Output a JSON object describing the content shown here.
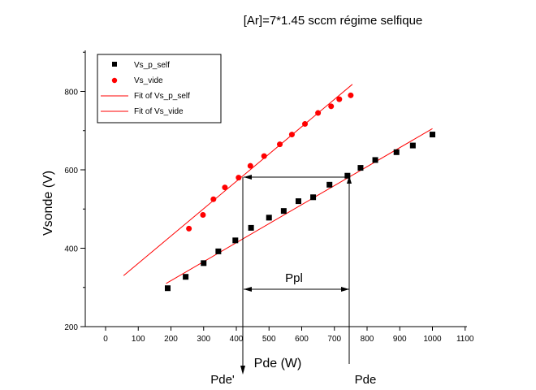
{
  "chart_data": {
    "type": "scatter",
    "title": "[Ar]=7*1.45 sccm régime selfique",
    "xlabel": "Pde (W)",
    "ylabel": "Vsonde (V)",
    "xlim": [
      -60,
      1100
    ],
    "ylim": [
      200,
      900
    ],
    "x_ticks": [
      0,
      100,
      200,
      300,
      400,
      500,
      600,
      700,
      800,
      900,
      1000,
      1100
    ],
    "y_ticks": [
      200,
      400,
      600,
      800
    ],
    "grid": false,
    "legend_position": "top-left",
    "series": [
      {
        "name": "Vs_p_self",
        "marker": "square",
        "color": "#000000",
        "x": [
          190,
          245,
          300,
          345,
          397,
          445,
          500,
          545,
          590,
          635,
          685,
          740,
          780,
          825,
          890,
          940,
          1000
        ],
        "y": [
          298,
          327,
          362,
          392,
          420,
          452,
          478,
          495,
          520,
          530,
          562,
          585,
          605,
          625,
          645,
          662,
          690
        ]
      },
      {
        "name": "Vs_vide",
        "marker": "circle",
        "color": "#ff0000",
        "x": [
          255,
          298,
          330,
          365,
          407,
          443,
          485,
          533,
          570,
          610,
          650,
          690,
          715,
          750
        ],
        "y": [
          450,
          485,
          525,
          555,
          580,
          610,
          635,
          665,
          690,
          717,
          745,
          762,
          780,
          790
        ]
      },
      {
        "name": "Fit of Vs_p_self",
        "type": "line",
        "color": "#ff0000",
        "x": [
          185,
          1000
        ],
        "y": [
          310,
          705
        ]
      },
      {
        "name": "Fit of Vs_vide",
        "type": "line",
        "color": "#ff0000",
        "x": [
          55,
          755
        ],
        "y": [
          330,
          818
        ]
      }
    ],
    "annotations": [
      {
        "label": "Ppl"
      },
      {
        "label": "Pde'"
      },
      {
        "label": "Pde"
      }
    ]
  }
}
